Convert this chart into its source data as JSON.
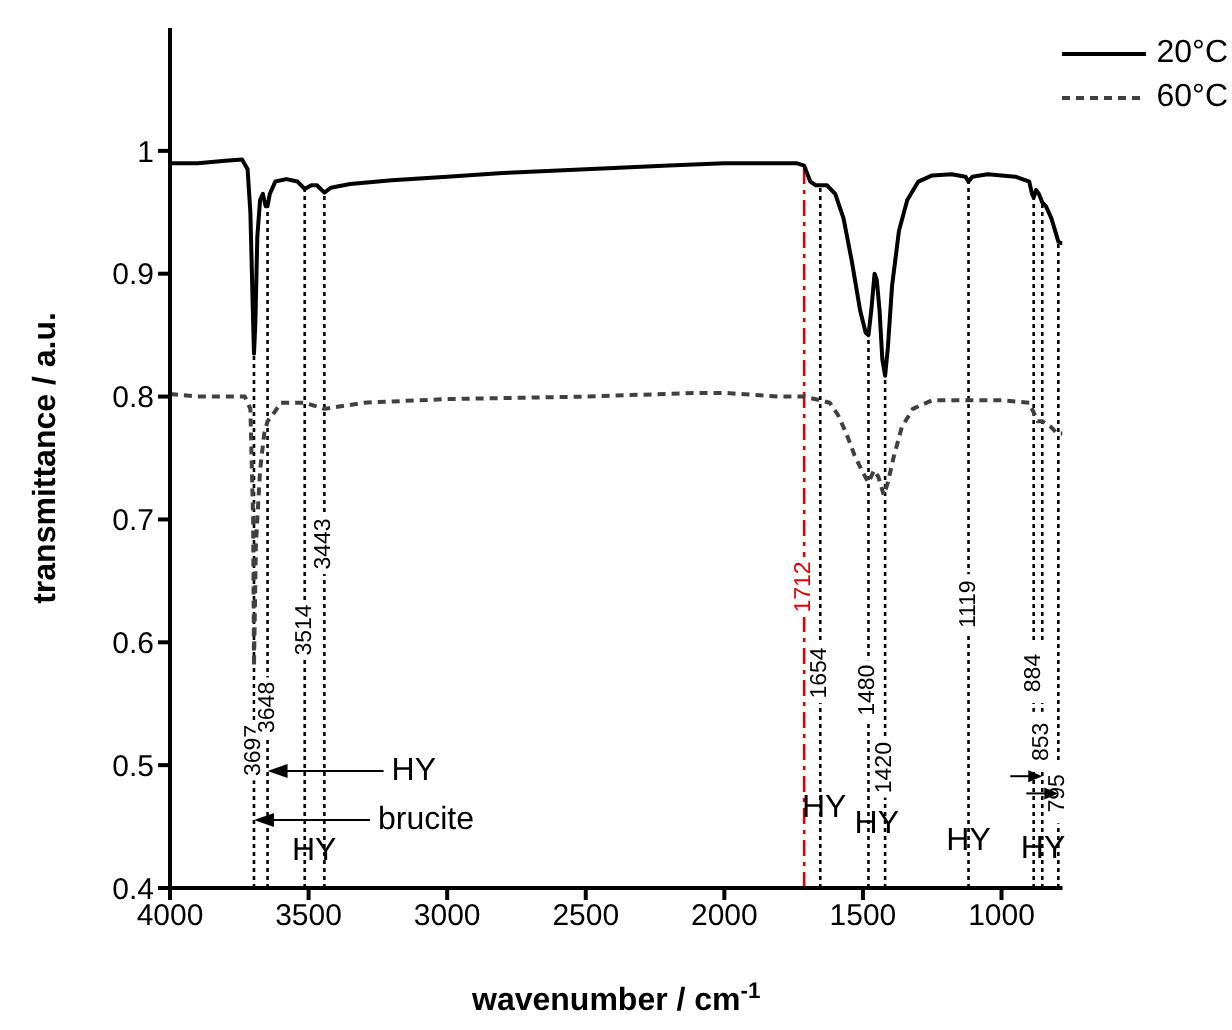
{
  "chart_data": {
    "type": "line",
    "xlabel": "wavenumber / cm$^{-1}$",
    "ylabel": "transmittance / a.u.",
    "xlim": [
      4000,
      780
    ],
    "xticks": [
      4000,
      3500,
      3000,
      2500,
      2000,
      1500,
      1000
    ],
    "ylim": [
      0.4,
      1.1
    ],
    "yticks": [
      0.4,
      0.5,
      0.6,
      0.7,
      0.8,
      0.9,
      {
        "value": 1,
        "label": "1"
      }
    ],
    "legend": "top right",
    "grid": false,
    "marker": "none",
    "series": [
      {
        "name": "20°C",
        "color": "#000000",
        "line_style": "solid",
        "x": [
          4000,
          3900,
          3800,
          3740,
          3720,
          3710,
          3700,
          3697,
          3692,
          3685,
          3675,
          3665,
          3655,
          3648,
          3640,
          3620,
          3580,
          3540,
          3514,
          3490,
          3470,
          3443,
          3420,
          3350,
          3200,
          3000,
          2800,
          2500,
          2200,
          2000,
          1800,
          1740,
          1712,
          1690,
          1670,
          1654,
          1630,
          1600,
          1570,
          1540,
          1510,
          1490,
          1480,
          1470,
          1458,
          1450,
          1440,
          1430,
          1420,
          1410,
          1395,
          1370,
          1340,
          1300,
          1250,
          1180,
          1130,
          1119,
          1105,
          1050,
          950,
          900,
          890,
          884,
          875,
          865,
          853,
          840,
          820,
          800,
          795,
          785,
          780
        ],
        "values": [
          0.99,
          0.99,
          0.992,
          0.993,
          0.985,
          0.95,
          0.86,
          0.835,
          0.86,
          0.93,
          0.96,
          0.965,
          0.955,
          0.955,
          0.965,
          0.975,
          0.977,
          0.975,
          0.969,
          0.972,
          0.972,
          0.966,
          0.97,
          0.973,
          0.976,
          0.979,
          0.982,
          0.985,
          0.988,
          0.99,
          0.99,
          0.99,
          0.988,
          0.975,
          0.972,
          0.972,
          0.972,
          0.965,
          0.945,
          0.91,
          0.87,
          0.852,
          0.85,
          0.87,
          0.9,
          0.895,
          0.87,
          0.83,
          0.817,
          0.84,
          0.89,
          0.935,
          0.96,
          0.975,
          0.98,
          0.981,
          0.979,
          0.975,
          0.979,
          0.981,
          0.979,
          0.975,
          0.965,
          0.962,
          0.968,
          0.965,
          0.958,
          0.955,
          0.945,
          0.93,
          0.926,
          0.925,
          0.925
        ]
      },
      {
        "name": "60°C",
        "color": "#404040",
        "line_style": "dashed",
        "x": [
          4000,
          3900,
          3800,
          3730,
          3710,
          3700,
          3697,
          3690,
          3675,
          3660,
          3648,
          3630,
          3600,
          3514,
          3443,
          3300,
          3000,
          2500,
          2100,
          2000,
          1800,
          1712,
          1654,
          1620,
          1590,
          1560,
          1530,
          1500,
          1480,
          1460,
          1445,
          1425,
          1410,
          1390,
          1360,
          1320,
          1250,
          1150,
          1000,
          900,
          884,
          870,
          853,
          820,
          800,
          780
        ],
        "values": [
          0.802,
          0.8,
          0.8,
          0.8,
          0.79,
          0.7,
          0.58,
          0.68,
          0.74,
          0.77,
          0.78,
          0.785,
          0.795,
          0.795,
          0.79,
          0.795,
          0.798,
          0.8,
          0.803,
          0.803,
          0.8,
          0.8,
          0.797,
          0.795,
          0.785,
          0.77,
          0.752,
          0.738,
          0.73,
          0.74,
          0.735,
          0.72,
          0.73,
          0.75,
          0.775,
          0.79,
          0.797,
          0.797,
          0.797,
          0.795,
          0.787,
          0.78,
          0.78,
          0.775,
          0.77,
          0.77
        ]
      }
    ],
    "ref_lines": [
      {
        "axis": "x",
        "value": 3697,
        "label": "3697",
        "color": "#000000",
        "line_style": "dotted"
      },
      {
        "axis": "x",
        "value": 3648,
        "label": "3648",
        "color": "#000000",
        "line_style": "dotted"
      },
      {
        "axis": "x",
        "value": 3514,
        "label": "3514",
        "color": "#000000",
        "line_style": "dotted"
      },
      {
        "axis": "x",
        "value": 3443,
        "label": "3443",
        "color": "#000000",
        "line_style": "dotted"
      },
      {
        "axis": "x",
        "value": 1712,
        "label": "1712",
        "color": "#e00000",
        "line_style": "dashed"
      },
      {
        "axis": "x",
        "value": 1654,
        "label": "1654",
        "color": "#000000",
        "line_style": "dotted"
      },
      {
        "axis": "x",
        "value": 1480,
        "label": "1480",
        "color": "#000000",
        "line_style": "dotted"
      },
      {
        "axis": "x",
        "value": 1420,
        "label": "1420",
        "color": "#000000",
        "line_style": "dotted"
      },
      {
        "axis": "x",
        "value": 1119,
        "label": "1119",
        "color": "#000000",
        "line_style": "dotted"
      },
      {
        "axis": "x",
        "value": 884,
        "label": "884",
        "color": "#000000",
        "line_style": "dotted"
      },
      {
        "axis": "x",
        "value": 853,
        "label": "853",
        "color": "#000000",
        "line_style": "dotted"
      },
      {
        "axis": "x",
        "value": 795,
        "label": "795",
        "color": "#000000",
        "line_style": "dotted"
      }
    ],
    "annotations": [
      "HY",
      "brucite",
      {
        "text": "HY",
        "x": 3480,
        "y": 0.43
      },
      {
        "text": "HY",
        "x": 1640,
        "y": 0.465
      },
      {
        "text": "HY",
        "x": 1450,
        "y": 0.452
      },
      {
        "text": "HY",
        "x": 1119,
        "y": 0.438
      },
      {
        "text": "HY",
        "x": 850,
        "y": 0.432
      }
    ]
  }
}
